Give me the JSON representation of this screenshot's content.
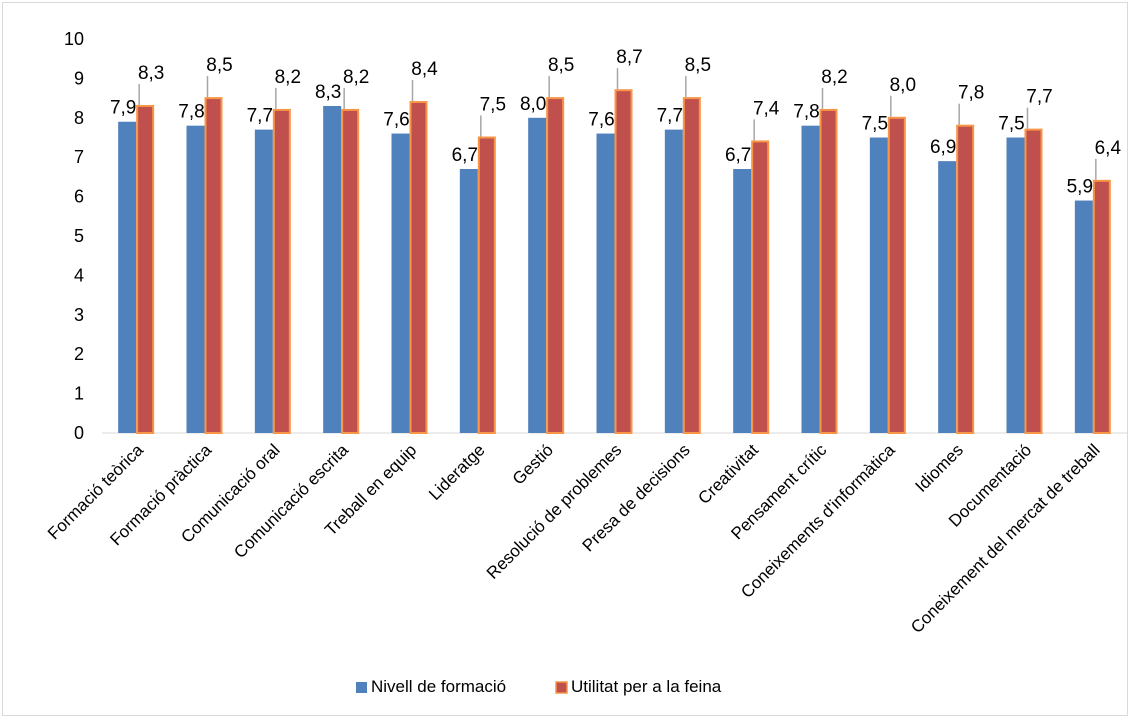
{
  "chart_data": {
    "type": "bar",
    "title": "",
    "xlabel": "",
    "ylabel": "",
    "ylim": [
      0,
      10
    ],
    "yticks": [
      "0",
      "1",
      "2",
      "3",
      "4",
      "5",
      "6",
      "7",
      "8",
      "9",
      "10"
    ],
    "grid": false,
    "legend_position": "bottom",
    "categories": [
      "Formació teòrica",
      "Formació pràctica",
      "Comunicació oral",
      "Comunicació escrita",
      "Treball en equip",
      "Lideratge",
      "Gestió",
      "Resolució de problemes",
      "Presa de decisions",
      "Creativitat",
      "Pensament crític",
      "Coneixements d'informàtica",
      "Idiomes",
      "Documentació",
      "Coneixement del mercat de treball"
    ],
    "series": [
      {
        "name": "Nivell de formació",
        "color": "#4f81bd",
        "values": [
          7.9,
          7.8,
          7.7,
          8.3,
          7.6,
          6.7,
          8.0,
          7.6,
          7.7,
          6.7,
          7.8,
          7.5,
          6.9,
          7.5,
          5.9
        ],
        "labels": [
          "7,9",
          "7,8",
          "7,7",
          "8,3",
          "7,6",
          "6,7",
          "8,0",
          "7,6",
          "7,7",
          "6,7",
          "7,8",
          "7,5",
          "6,9",
          "7,5",
          "5,9"
        ]
      },
      {
        "name": "Utilitat per a la feina",
        "color": "#c0504d",
        "border": "#f79646",
        "values": [
          8.3,
          8.5,
          8.2,
          8.2,
          8.4,
          7.5,
          8.5,
          8.7,
          8.5,
          7.4,
          8.2,
          8.0,
          7.8,
          7.7,
          6.4
        ],
        "labels": [
          "8,3",
          "8,5",
          "8,2",
          "8,2",
          "8,4",
          "7,5",
          "8,5",
          "8,7",
          "8,5",
          "7,4",
          "8,2",
          "8,0",
          "7,8",
          "7,7",
          "6,4"
        ]
      }
    ]
  }
}
